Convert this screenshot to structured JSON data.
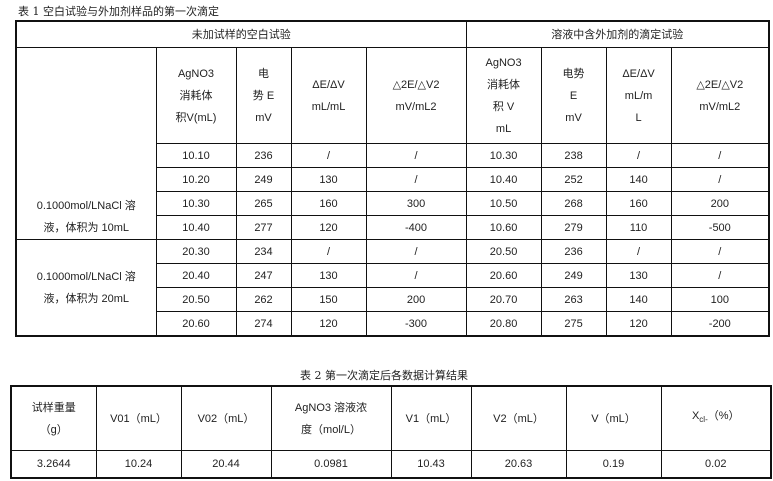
{
  "table1": {
    "caption": "表 1 空白试验与外加剂样品的第一次滴定",
    "group_headers": [
      "未加试样的空白试验",
      "溶液中含外加剂的滴定试验"
    ],
    "blank_headers": [
      [
        "AgNO3",
        "消耗体",
        "积V(mL)"
      ],
      [
        "电",
        "势 E",
        "mV"
      ],
      [
        "ΔE/ΔV",
        "mL/mL"
      ],
      [
        "△2E/△V2",
        "mV/mL2"
      ]
    ],
    "sample_headers": [
      [
        "AgNO3",
        "消耗体",
        "积 V",
        "mL"
      ],
      [
        "电势",
        "E",
        "mV"
      ],
      [
        "ΔE/ΔV",
        "mL/m",
        "L"
      ],
      [
        "△2E/△V2",
        "mV/mL2"
      ]
    ],
    "groups": [
      {
        "label": [
          "0.1000mol/LNaCl 溶",
          "液，体积为 10mL"
        ],
        "rows": [
          [
            "10.10",
            "236",
            "/",
            "/",
            "10.30",
            "238",
            "/",
            "/"
          ],
          [
            "10.20",
            "249",
            "130",
            "/",
            "10.40",
            "252",
            "140",
            "/"
          ],
          [
            "10.30",
            "265",
            "160",
            "300",
            "10.50",
            "268",
            "160",
            "200"
          ],
          [
            "10.40",
            "277",
            "120",
            "-400",
            "10.60",
            "279",
            "110",
            "-500"
          ]
        ]
      },
      {
        "label": [
          "0.1000mol/LNaCl 溶",
          "液，体积为 20mL"
        ],
        "rows": [
          [
            "20.30",
            "234",
            "/",
            "/",
            "20.50",
            "236",
            "/",
            "/"
          ],
          [
            "20.40",
            "247",
            "130",
            "/",
            "20.60",
            "249",
            "130",
            "/"
          ],
          [
            "20.50",
            "262",
            "150",
            "200",
            "20.70",
            "263",
            "140",
            "100"
          ],
          [
            "20.60",
            "274",
            "120",
            "-300",
            "20.80",
            "275",
            "120",
            "-200"
          ]
        ]
      }
    ]
  },
  "table2": {
    "caption": "表 2 第一次滴定后各数据计算结果",
    "headers": [
      [
        "试样重量",
        "（g）"
      ],
      [
        "V01（mL）"
      ],
      [
        "V02（mL）"
      ],
      [
        "AgNO3 溶液浓",
        "度（mol/L）"
      ],
      [
        "V1（mL）"
      ],
      [
        "V2（mL）"
      ],
      [
        "V（mL）"
      ],
      [
        "X",
        "cl-",
        "（%）"
      ]
    ],
    "values": [
      "3.2644",
      "10.24",
      "20.44",
      "0.0981",
      "10.43",
      "20.63",
      "0.19",
      "0.02"
    ]
  }
}
